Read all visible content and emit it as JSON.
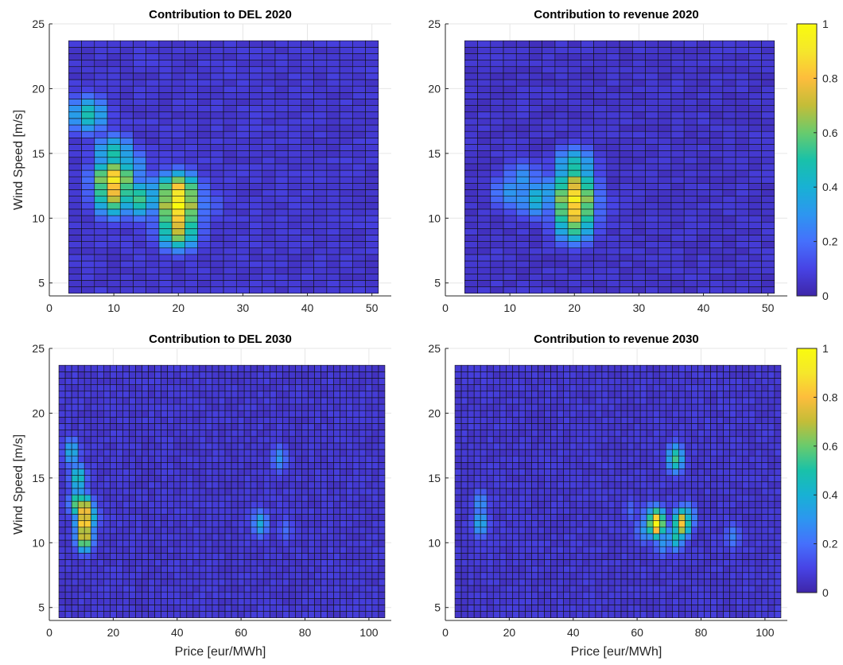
{
  "chart_data": [
    {
      "type": "heatmap",
      "title": "Contribution to DEL 2020",
      "xlabel": "",
      "ylabel": "Wind Speed [m/s]",
      "xlim": [
        0,
        53
      ],
      "ylim": [
        4,
        25
      ],
      "xticks": [
        0,
        10,
        20,
        30,
        40,
        50
      ],
      "yticks": [
        5,
        10,
        15,
        20,
        25
      ],
      "x_range": [
        3,
        51
      ],
      "y_range": [
        4.2,
        23.7
      ],
      "grid": true,
      "base_value": 0.04,
      "hotspots": [
        {
          "x": 10,
          "y": 13.0,
          "value": 0.92
        },
        {
          "x": 10,
          "y": 12.0,
          "value": 0.78
        },
        {
          "x": 10,
          "y": 11.5,
          "value": 0.62
        },
        {
          "x": 20,
          "y": 11.0,
          "value": 1.0
        },
        {
          "x": 20,
          "y": 12.0,
          "value": 0.9
        },
        {
          "x": 20,
          "y": 10.0,
          "value": 0.84
        },
        {
          "x": 20,
          "y": 9.0,
          "value": 0.7
        },
        {
          "x": 14,
          "y": 11.5,
          "value": 0.55
        },
        {
          "x": 10,
          "y": 15.0,
          "value": 0.5
        },
        {
          "x": 6,
          "y": 18.0,
          "value": 0.48
        },
        {
          "x": 18,
          "y": 12.0,
          "value": 0.42
        },
        {
          "x": 16,
          "y": 12.0,
          "value": 0.35
        },
        {
          "x": 12,
          "y": 14.0,
          "value": 0.4
        },
        {
          "x": 24,
          "y": 11.0,
          "value": 0.22
        }
      ]
    },
    {
      "type": "heatmap",
      "title": "Contribution to revenue 2020",
      "xlabel": "",
      "ylabel": "",
      "xlim": [
        0,
        53
      ],
      "ylim": [
        4,
        25
      ],
      "xticks": [
        0,
        10,
        20,
        30,
        40,
        50
      ],
      "yticks": [
        5,
        10,
        15,
        20,
        25
      ],
      "x_range": [
        3,
        51
      ],
      "y_range": [
        4.2,
        23.7
      ],
      "grid": true,
      "base_value": 0.03,
      "hotspots": [
        {
          "x": 20,
          "y": 11.5,
          "value": 0.95
        },
        {
          "x": 20,
          "y": 10.5,
          "value": 0.85
        },
        {
          "x": 20,
          "y": 12.5,
          "value": 0.75
        },
        {
          "x": 20,
          "y": 9.5,
          "value": 0.6
        },
        {
          "x": 20,
          "y": 14.0,
          "value": 0.5
        },
        {
          "x": 18,
          "y": 12.0,
          "value": 0.38
        },
        {
          "x": 14,
          "y": 11.5,
          "value": 0.42
        },
        {
          "x": 16,
          "y": 12.0,
          "value": 0.33
        },
        {
          "x": 10,
          "y": 12.0,
          "value": 0.3
        },
        {
          "x": 12,
          "y": 13.0,
          "value": 0.3
        },
        {
          "x": 22,
          "y": 12.0,
          "value": 0.2
        },
        {
          "x": 24,
          "y": 11.0,
          "value": 0.15
        }
      ]
    },
    {
      "type": "heatmap",
      "title": "Contribution to DEL 2030",
      "xlabel": "Price [eur/MWh]",
      "ylabel": "Wind Speed [m/s]",
      "xlim": [
        0,
        107
      ],
      "ylim": [
        4,
        25
      ],
      "xticks": [
        0,
        20,
        40,
        60,
        80,
        100
      ],
      "yticks": [
        5,
        10,
        15,
        20,
        25
      ],
      "x_range": [
        3,
        105
      ],
      "y_range": [
        4.2,
        23.7
      ],
      "grid": true,
      "base_value": 0.04,
      "hotspots": [
        {
          "x": 11,
          "y": 11.5,
          "value": 0.95
        },
        {
          "x": 11,
          "y": 12.5,
          "value": 0.88
        },
        {
          "x": 11,
          "y": 10.5,
          "value": 0.8
        },
        {
          "x": 9,
          "y": 13.0,
          "value": 0.65
        },
        {
          "x": 9,
          "y": 15.0,
          "value": 0.5
        },
        {
          "x": 7,
          "y": 17.0,
          "value": 0.4
        },
        {
          "x": 13,
          "y": 12.0,
          "value": 0.45
        },
        {
          "x": 66,
          "y": 11.5,
          "value": 0.38
        },
        {
          "x": 72,
          "y": 16.5,
          "value": 0.3
        },
        {
          "x": 74,
          "y": 11.0,
          "value": 0.2
        },
        {
          "x": 64,
          "y": 12.0,
          "value": 0.17
        }
      ]
    },
    {
      "type": "heatmap",
      "title": "Contribution to revenue 2030",
      "xlabel": "Price [eur/MWh]",
      "ylabel": "",
      "xlim": [
        0,
        107
      ],
      "ylim": [
        4,
        25
      ],
      "xticks": [
        0,
        20,
        40,
        60,
        80,
        100
      ],
      "yticks": [
        5,
        10,
        15,
        20,
        25
      ],
      "x_range": [
        3,
        105
      ],
      "y_range": [
        4.2,
        23.7
      ],
      "grid": true,
      "base_value": 0.04,
      "hotspots": [
        {
          "x": 66,
          "y": 11.5,
          "value": 0.98
        },
        {
          "x": 74,
          "y": 11.5,
          "value": 0.82
        },
        {
          "x": 72,
          "y": 10.5,
          "value": 0.5
        },
        {
          "x": 72,
          "y": 16.5,
          "value": 0.55
        },
        {
          "x": 64,
          "y": 12.0,
          "value": 0.35
        },
        {
          "x": 62,
          "y": 11.0,
          "value": 0.3
        },
        {
          "x": 76,
          "y": 12.0,
          "value": 0.4
        },
        {
          "x": 68,
          "y": 10.0,
          "value": 0.3
        },
        {
          "x": 11,
          "y": 11.5,
          "value": 0.38
        },
        {
          "x": 11,
          "y": 13.0,
          "value": 0.3
        },
        {
          "x": 90,
          "y": 10.5,
          "value": 0.25
        },
        {
          "x": 58,
          "y": 12.5,
          "value": 0.18
        }
      ]
    }
  ],
  "colorbars": [
    {
      "ticks": [
        "0",
        "0.2",
        "0.4",
        "0.6",
        "0.8",
        "1"
      ],
      "min": 0,
      "max": 1
    },
    {
      "ticks": [
        "0",
        "0.2",
        "0.4",
        "0.6",
        "0.8",
        "1"
      ],
      "min": 0,
      "max": 1
    }
  ],
  "colormap": [
    "#3e26a8",
    "#4743e5",
    "#4570fc",
    "#2d96f0",
    "#18b1d4",
    "#19c1a9",
    "#68cb6d",
    "#c3bd38",
    "#fdbd3c",
    "#f5e72b",
    "#f9fb0e"
  ]
}
